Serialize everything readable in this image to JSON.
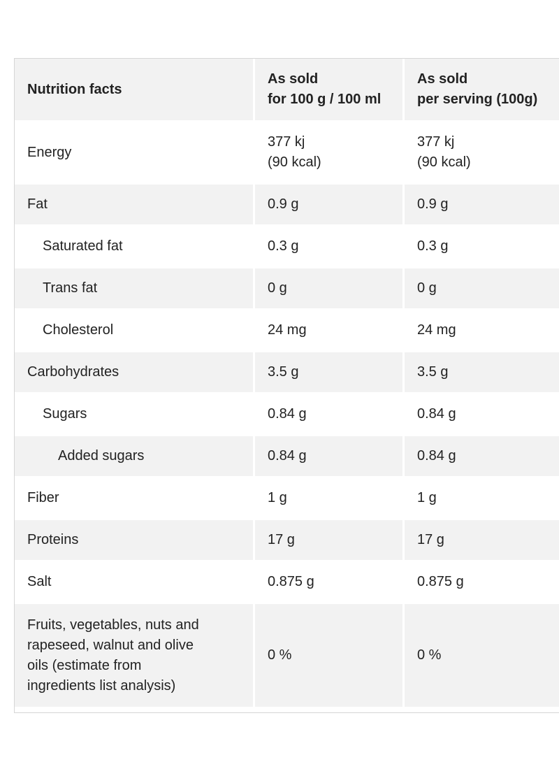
{
  "header": {
    "col1": "Nutrition facts",
    "col2_line1": "As sold",
    "col2_line2": "for 100 g / 100 ml",
    "col3_line1": "As sold",
    "col3_line2": "per serving (100g)"
  },
  "rows": [
    {
      "name": "Energy",
      "per100_line1": "377 kj",
      "per100_line2": "(90 kcal)",
      "serving_line1": "377 kj",
      "serving_line2": "(90 kcal)"
    },
    {
      "name": "Fat",
      "per100": "0.9 g",
      "serving": "0.9 g"
    },
    {
      "name": "Saturated fat",
      "per100": "0.3 g",
      "serving": "0.3 g"
    },
    {
      "name": "Trans fat",
      "per100": "0 g",
      "serving": "0 g"
    },
    {
      "name": "Cholesterol",
      "per100": "24 mg",
      "serving": "24 mg"
    },
    {
      "name": "Carbohydrates",
      "per100": "3.5 g",
      "serving": "3.5 g"
    },
    {
      "name": "Sugars",
      "per100": "0.84 g",
      "serving": "0.84 g"
    },
    {
      "name": "Added sugars",
      "per100": "0.84 g",
      "serving": "0.84 g"
    },
    {
      "name": "Fiber",
      "per100": "1 g",
      "serving": "1 g"
    },
    {
      "name": "Proteins",
      "per100": "17 g",
      "serving": "17 g"
    },
    {
      "name": "Salt",
      "per100": "0.875 g",
      "serving": "0.875 g"
    },
    {
      "name_lines": [
        "Fruits, vegetables, nuts and",
        "rapeseed, walnut and olive",
        "oils (estimate from",
        "ingredients list analysis)"
      ],
      "per100": "0 %",
      "serving": "0 %"
    }
  ]
}
